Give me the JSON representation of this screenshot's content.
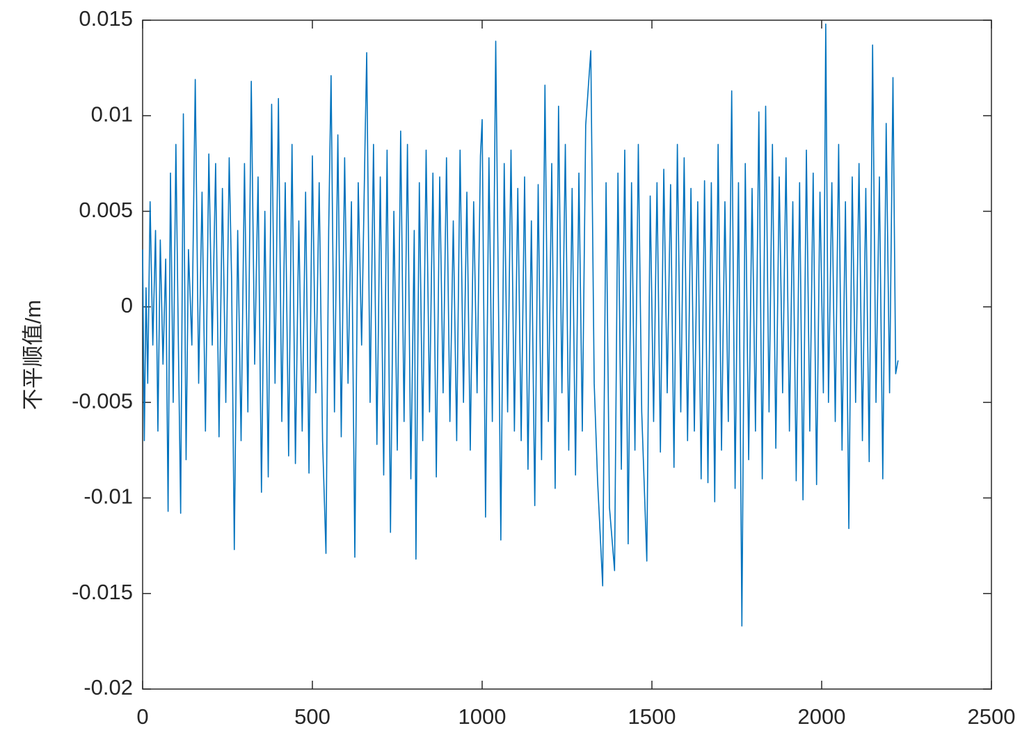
{
  "chart_data": {
    "type": "line",
    "ylabel": "不平顺值/m",
    "x": [
      0,
      5,
      10,
      15,
      22,
      30,
      38,
      45,
      52,
      60,
      68,
      75,
      82,
      90,
      98,
      105,
      112,
      120,
      128,
      135,
      145,
      155,
      165,
      175,
      185,
      195,
      205,
      215,
      225,
      235,
      245,
      255,
      262,
      270,
      280,
      290,
      300,
      310,
      320,
      330,
      340,
      350,
      360,
      370,
      380,
      390,
      400,
      410,
      420,
      430,
      440,
      450,
      460,
      470,
      480,
      490,
      500,
      510,
      520,
      530,
      540,
      548,
      555,
      565,
      575,
      585,
      595,
      605,
      615,
      625,
      635,
      645,
      655,
      660,
      670,
      680,
      690,
      700,
      710,
      720,
      730,
      740,
      750,
      760,
      770,
      780,
      790,
      800,
      805,
      815,
      825,
      835,
      845,
      855,
      865,
      875,
      885,
      895,
      905,
      915,
      925,
      935,
      945,
      955,
      965,
      975,
      985,
      995,
      1000,
      1010,
      1020,
      1030,
      1040,
      1050,
      1055,
      1065,
      1075,
      1085,
      1095,
      1105,
      1115,
      1125,
      1135,
      1145,
      1155,
      1165,
      1175,
      1185,
      1195,
      1205,
      1215,
      1225,
      1235,
      1245,
      1255,
      1265,
      1275,
      1285,
      1295,
      1305,
      1320,
      1330,
      1340,
      1355,
      1365,
      1375,
      1390,
      1400,
      1410,
      1420,
      1430,
      1440,
      1450,
      1460,
      1470,
      1485,
      1495,
      1505,
      1515,
      1525,
      1535,
      1545,
      1555,
      1565,
      1575,
      1585,
      1595,
      1605,
      1615,
      1625,
      1635,
      1645,
      1655,
      1665,
      1675,
      1685,
      1695,
      1705,
      1715,
      1725,
      1735,
      1745,
      1755,
      1765,
      1775,
      1785,
      1795,
      1805,
      1815,
      1825,
      1835,
      1845,
      1855,
      1865,
      1875,
      1885,
      1895,
      1905,
      1915,
      1925,
      1935,
      1945,
      1955,
      1965,
      1975,
      1985,
      1995,
      2005,
      2012,
      2020,
      2030,
      2040,
      2050,
      2060,
      2070,
      2080,
      2090,
      2100,
      2110,
      2120,
      2130,
      2140,
      2150,
      2160,
      2170,
      2180,
      2190,
      2200,
      2210,
      2218,
      2225
    ],
    "series": [
      {
        "color": "#0072bd",
        "values": [
          0.003,
          -0.007,
          0.001,
          -0.004,
          0.0055,
          -0.002,
          0.004,
          -0.0065,
          0.0035,
          -0.003,
          0.0025,
          -0.0107,
          0.007,
          -0.005,
          0.0085,
          -0.0015,
          -0.0108,
          0.0101,
          -0.008,
          0.003,
          -0.002,
          0.0119,
          -0.004,
          0.006,
          -0.0065,
          0.008,
          -0.002,
          0.0075,
          -0.0068,
          0.0062,
          -0.005,
          0.0078,
          0.0015,
          -0.0127,
          0.004,
          -0.007,
          0.0075,
          -0.0055,
          0.0118,
          -0.003,
          0.0068,
          -0.0097,
          0.005,
          -0.0089,
          0.0106,
          -0.004,
          0.0109,
          -0.006,
          0.0065,
          -0.0078,
          0.0085,
          -0.0082,
          0.0045,
          -0.0065,
          0.006,
          -0.0087,
          0.0079,
          -0.0045,
          0.0065,
          -0.007,
          -0.0129,
          0.004,
          0.0121,
          -0.0055,
          0.009,
          -0.0068,
          0.0078,
          -0.004,
          0.0055,
          -0.0131,
          0.0065,
          -0.002,
          0.0085,
          0.0133,
          -0.005,
          0.0085,
          -0.0072,
          0.0068,
          -0.0088,
          0.0082,
          -0.0118,
          0.005,
          -0.0075,
          0.0092,
          -0.006,
          0.0085,
          -0.009,
          0.004,
          -0.0132,
          0.0065,
          -0.007,
          0.0082,
          -0.0055,
          0.007,
          -0.0089,
          0.0068,
          -0.0045,
          0.0078,
          -0.006,
          0.0045,
          -0.007,
          0.0082,
          -0.005,
          0.006,
          -0.0075,
          0.0055,
          -0.0045,
          0.0079,
          0.0098,
          -0.011,
          0.0078,
          -0.006,
          0.0139,
          -0.003,
          -0.0122,
          0.0075,
          -0.0055,
          0.0082,
          -0.0065,
          0.0062,
          -0.007,
          0.0068,
          -0.0085,
          0.0045,
          -0.0104,
          0.0064,
          -0.008,
          0.0116,
          -0.006,
          0.0075,
          -0.0095,
          0.0105,
          -0.0045,
          0.0085,
          -0.0075,
          0.0062,
          -0.0088,
          0.007,
          -0.0065,
          0.0095,
          0.0134,
          -0.004,
          -0.0091,
          -0.0146,
          0.0065,
          -0.0105,
          -0.0138,
          0.007,
          -0.0085,
          0.0082,
          -0.0124,
          0.0065,
          -0.0075,
          0.0085,
          -0.0055,
          -0.0133,
          0.0058,
          -0.006,
          0.0065,
          -0.0076,
          0.0072,
          -0.0045,
          0.0064,
          -0.0084,
          0.0085,
          -0.0055,
          0.0078,
          -0.007,
          0.0062,
          -0.0065,
          0.0055,
          -0.009,
          0.0066,
          -0.0092,
          0.0065,
          -0.0102,
          0.0085,
          -0.0075,
          0.0055,
          -0.006,
          0.0113,
          -0.0095,
          0.0065,
          -0.0167,
          0.0075,
          -0.008,
          0.0062,
          -0.0065,
          0.0102,
          -0.009,
          0.0105,
          -0.0055,
          0.0085,
          -0.0074,
          0.0068,
          -0.0045,
          0.0078,
          -0.0065,
          0.0055,
          -0.0091,
          0.0065,
          -0.0101,
          0.0082,
          -0.0065,
          0.007,
          -0.0093,
          0.006,
          -0.0045,
          0.0148,
          -0.005,
          0.0065,
          -0.006,
          0.0085,
          -0.0075,
          0.0055,
          -0.0116,
          0.0068,
          -0.005,
          0.0075,
          -0.007,
          0.0062,
          -0.0081,
          0.0137,
          -0.005,
          0.0068,
          -0.009,
          0.0096,
          -0.0045,
          0.012,
          -0.0035,
          -0.0028
        ]
      }
    ],
    "xlim": [
      0,
      2500
    ],
    "xticks": [
      0,
      500,
      1000,
      1500,
      2000,
      2500
    ],
    "ylim": [
      -0.02,
      0.015
    ],
    "yticks": [
      -0.02,
      -0.015,
      -0.01,
      -0.005,
      0,
      0.005,
      0.01,
      0.015
    ]
  }
}
